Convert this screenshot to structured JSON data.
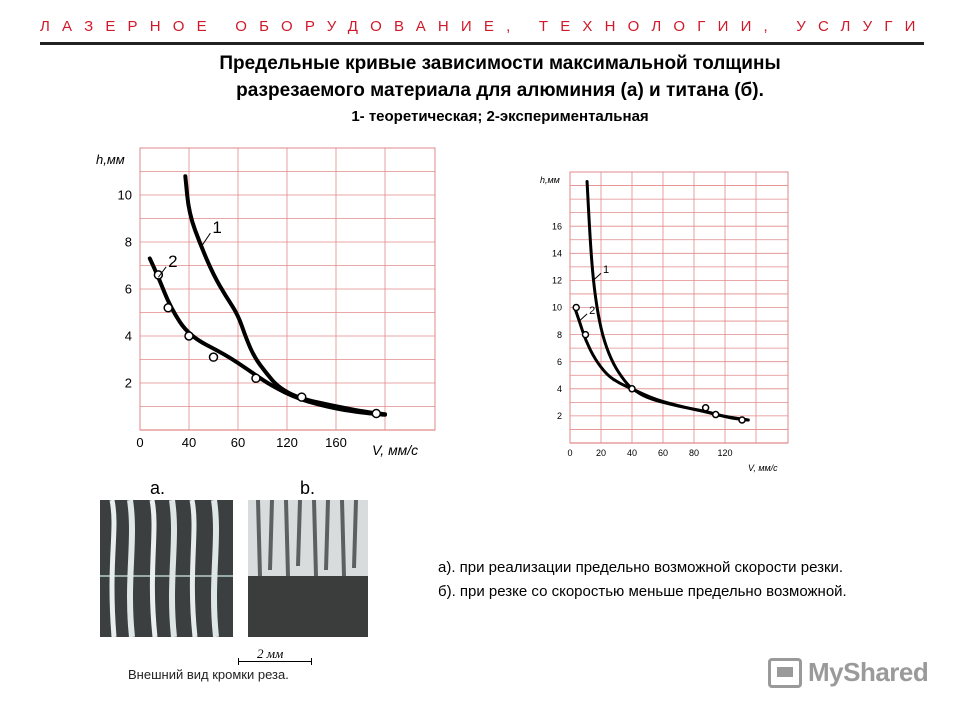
{
  "banner": {
    "text": "ЛАЗЕРНОЕ ОБОРУДОВАНИЕ, ТЕХНОЛОГИИ, УСЛУГИ"
  },
  "title": {
    "line1": "Предельные кривые зависимости максимальной толщины",
    "line2": "разрезаемого материала для алюминия (а) и титана (б).",
    "subtitle": "1- теоретическая; 2-экспериментальная"
  },
  "chart_data": [
    {
      "type": "line",
      "xlabel": "V, мм/с",
      "ylabel": "h,мм",
      "x_ticks": [
        "0",
        "40",
        "60",
        "120",
        "160"
      ],
      "y_ticks": [
        "2",
        "4",
        "6",
        "8",
        "10"
      ],
      "ylim": [
        0,
        12
      ],
      "grid": true,
      "series": [
        {
          "name": "1",
          "points": [
            [
              37,
              10.8
            ],
            [
              40,
              9.2
            ],
            [
              45,
              7.8
            ],
            [
              50,
              6.6
            ],
            [
              55,
              5.7
            ],
            [
              60,
              4.9
            ],
            [
              70,
              3.9
            ],
            [
              80,
              3.1
            ],
            [
              95,
              2.4
            ],
            [
              110,
              1.8
            ],
            [
              130,
              1.35
            ],
            [
              160,
              1.0
            ],
            [
              190,
              0.75
            ],
            [
              205,
              0.67
            ]
          ]
        },
        {
          "name": "2",
          "points": [
            [
              8,
              7.3
            ],
            [
              15,
              6.5
            ],
            [
              25,
              5.2
            ],
            [
              40,
              4.0
            ],
            [
              55,
              3.2
            ],
            [
              75,
              2.5
            ],
            [
              100,
              1.9
            ],
            [
              130,
              1.3
            ],
            [
              160,
              0.9
            ],
            [
              190,
              0.7
            ],
            [
              205,
              0.65
            ]
          ],
          "markers": [
            [
              15,
              6.6
            ],
            [
              23,
              5.2
            ],
            [
              40,
              4.0
            ],
            [
              50,
              3.1
            ],
            [
              82,
              2.2
            ],
            [
              132,
              1.4
            ],
            [
              197,
              0.7
            ]
          ]
        }
      ],
      "series_colors": [
        "#000000",
        "#000000"
      ]
    },
    {
      "type": "line",
      "xlabel": "V, мм/с",
      "ylabel": "h,мм",
      "x_ticks": [
        "0",
        "20",
        "40",
        "60",
        "80",
        "120"
      ],
      "y_ticks": [
        "2",
        "4",
        "6",
        "8",
        "10",
        "12",
        "14",
        "16"
      ],
      "ylim": [
        0,
        20
      ],
      "grid": true,
      "series": [
        {
          "name": "1",
          "points": [
            [
              11,
              19.3
            ],
            [
              13,
              15
            ],
            [
              15,
              12
            ],
            [
              18,
              9.5
            ],
            [
              22,
              7.5
            ],
            [
              28,
              5.8
            ],
            [
              35,
              4.6
            ],
            [
              40,
              4.0
            ],
            [
              50,
              3.3
            ],
            [
              70,
              2.7
            ],
            [
              90,
              2.4
            ],
            [
              110,
              2.1
            ],
            [
              125,
              1.8
            ],
            [
              135,
              1.7
            ]
          ]
        },
        {
          "name": "2",
          "points": [
            [
              3,
              10
            ],
            [
              6,
              9
            ],
            [
              10,
              7.6
            ],
            [
              16,
              6.2
            ],
            [
              24,
              5
            ],
            [
              32,
              4.4
            ],
            [
              40,
              4.0
            ],
            [
              55,
              3.2
            ],
            [
              75,
              2.6
            ],
            [
              95,
              2.3
            ],
            [
              115,
              2.0
            ],
            [
              135,
              1.7
            ]
          ],
          "markers": [
            [
              4,
              10
            ],
            [
              10,
              8
            ],
            [
              40,
              4
            ],
            [
              95,
              2.6
            ],
            [
              108,
              2.1
            ],
            [
              131,
              1.7
            ]
          ]
        }
      ],
      "series_colors": [
        "#000000",
        "#000000"
      ]
    }
  ],
  "photos": {
    "label_a": "a.",
    "label_b": "b.",
    "scale": "2 мм",
    "caption": "Внешний вид кромки реза."
  },
  "notes": {
    "line1": "а). при реализации предельно возможной скорости резки.",
    "line2": "б). при резке со скоростью меньше предельно возможной."
  },
  "logo": {
    "text": "MyShared"
  }
}
